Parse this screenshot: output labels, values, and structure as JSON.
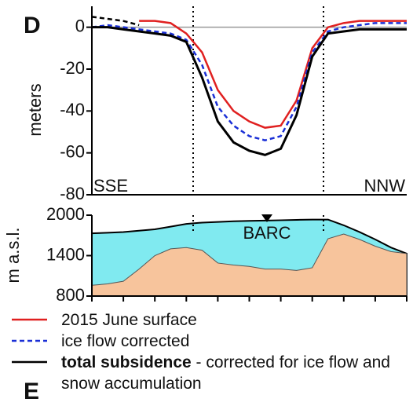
{
  "chart_data": [
    {
      "type": "line",
      "panel": "D",
      "y_label": "meters",
      "left_label": "SSE",
      "right_label": "NNW",
      "categories": [
        null,
        null,
        null,
        null,
        null,
        null,
        null,
        null,
        null,
        null,
        null,
        null,
        null,
        null,
        null,
        null,
        null,
        null,
        null,
        null,
        null
      ],
      "ylim": [
        -80,
        10
      ],
      "yticks": [
        0,
        -20,
        -40,
        -60,
        -80
      ],
      "series": [
        {
          "color": "#000000",
          "dash": true,
          "values": [
            5,
            4,
            3,
            1,
            null,
            null,
            null,
            null,
            null,
            null,
            null,
            null,
            null,
            null,
            null,
            null,
            null,
            null,
            null,
            null,
            null
          ]
        },
        {
          "name": "2015 June surface",
          "color": "#e02020",
          "dash": false,
          "values": [
            null,
            null,
            null,
            3,
            3,
            2,
            -3,
            -12,
            -30,
            -40,
            -45,
            -48,
            -47,
            -35,
            -10,
            0,
            2,
            3,
            3,
            3,
            3
          ]
        },
        {
          "name": "ice flow corrected",
          "color": "#1a2fd6",
          "dash": true,
          "values": [
            0,
            1,
            0,
            -1,
            -2,
            -3,
            -6,
            -18,
            -38,
            -47,
            -52,
            -54,
            -52,
            -38,
            -12,
            -2,
            0,
            1,
            2,
            2,
            2
          ]
        },
        {
          "name": "total subsidence",
          "color": "#000000",
          "dash": false,
          "values": [
            0,
            0,
            -1,
            -2,
            -3,
            -4,
            -7,
            -24,
            -45,
            -55,
            -59,
            -61,
            -58,
            -42,
            -14,
            -3,
            -2,
            -1,
            -1,
            -1,
            -1
          ]
        }
      ],
      "legend_note": "- corrected for ice flow and snow accumulation"
    },
    {
      "type": "area",
      "y_label": "m a.s.l.",
      "annotation": "BARC",
      "categories": [
        null,
        null,
        null,
        null,
        null,
        null,
        null,
        null,
        null,
        null,
        null,
        null,
        null,
        null,
        null,
        null,
        null,
        null,
        null,
        null,
        null
      ],
      "ylim": [
        800,
        2000
      ],
      "yticks": [
        800,
        1400,
        2000
      ],
      "series": [
        {
          "color": "#80eaf0",
          "values": [
            1730,
            1740,
            1750,
            1770,
            1790,
            1830,
            1870,
            1890,
            1900,
            1910,
            1915,
            1920,
            1925,
            1930,
            1935,
            1935,
            1850,
            1750,
            1640,
            1520,
            1430
          ]
        },
        {
          "color": "#f7c49c",
          "values": [
            960,
            980,
            1020,
            1200,
            1400,
            1500,
            1520,
            1480,
            1290,
            1260,
            1240,
            1200,
            1200,
            1180,
            1220,
            1650,
            1720,
            1640,
            1540,
            1460,
            1430
          ]
        }
      ]
    }
  ],
  "cut_off_label": "E"
}
